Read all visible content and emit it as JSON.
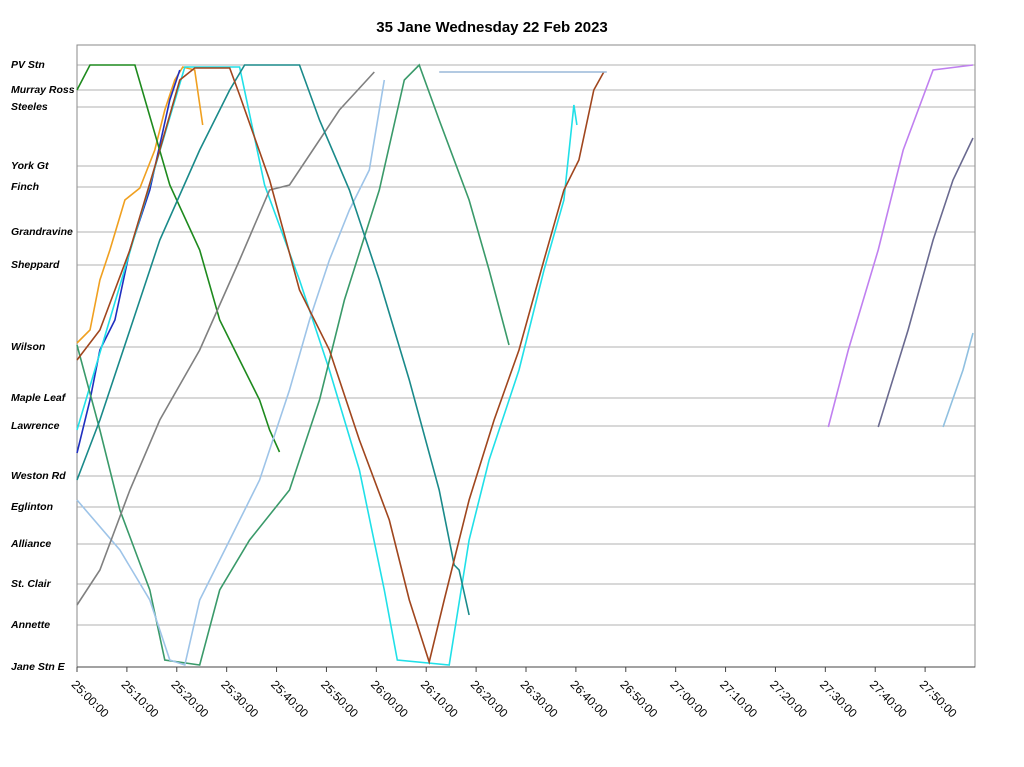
{
  "chart_data": {
    "type": "line",
    "title": "35 Jane Wednesday 22 Feb 2023",
    "grid": true,
    "xlim": [
      1500,
      1680
    ],
    "ylim": [
      0,
      62.2
    ],
    "xticks": [
      {
        "value": 1500,
        "label": "25:00:00"
      },
      {
        "value": 1510,
        "label": "25:10:00"
      },
      {
        "value": 1520,
        "label": "25:20:00"
      },
      {
        "value": 1530,
        "label": "25:30:00"
      },
      {
        "value": 1540,
        "label": "25:40:00"
      },
      {
        "value": 1550,
        "label": "25:50:00"
      },
      {
        "value": 1560,
        "label": "26:00:00"
      },
      {
        "value": 1570,
        "label": "26:10:00"
      },
      {
        "value": 1580,
        "label": "26:20:00"
      },
      {
        "value": 1590,
        "label": "26:30:00"
      },
      {
        "value": 1600,
        "label": "26:40:00"
      },
      {
        "value": 1610,
        "label": "26:50:00"
      },
      {
        "value": 1620,
        "label": "27:00:00"
      },
      {
        "value": 1630,
        "label": "27:10:00"
      },
      {
        "value": 1640,
        "label": "27:20:00"
      },
      {
        "value": 1650,
        "label": "27:30:00"
      },
      {
        "value": 1660,
        "label": "27:40:00"
      },
      {
        "value": 1670,
        "label": "27:50:00"
      }
    ],
    "yticks": [
      {
        "value": 60.2,
        "label": "PV Stn"
      },
      {
        "value": 57.7,
        "label": "Murray Ross"
      },
      {
        "value": 56.0,
        "label": "Steeles"
      },
      {
        "value": 50.1,
        "label": "York Gt"
      },
      {
        "value": 48.0,
        "label": "Finch"
      },
      {
        "value": 43.5,
        "label": "Grandravine"
      },
      {
        "value": 40.2,
        "label": "Sheppard"
      },
      {
        "value": 32.0,
        "label": "Wilson"
      },
      {
        "value": 26.9,
        "label": "Maple Leaf"
      },
      {
        "value": 24.1,
        "label": "Lawrence"
      },
      {
        "value": 19.1,
        "label": "Weston Rd"
      },
      {
        "value": 16.0,
        "label": "Eglinton"
      },
      {
        "value": 12.3,
        "label": "Alliance"
      },
      {
        "value": 8.3,
        "label": "St. Clair"
      },
      {
        "value": 4.2,
        "label": "Annette"
      },
      {
        "value": 0,
        "label": "Jane Stn E"
      }
    ],
    "series": [
      {
        "color": "#f0a020",
        "x": [
          1500,
          1502.6,
          1504.6,
          1506.6,
          1509.6,
          1512.6,
          1515.6,
          1517.6,
          1519.6,
          1521.2,
          1523.6,
          1525.2
        ],
        "values": [
          32.4,
          33.7,
          38.7,
          41.7,
          46.7,
          47.9,
          51.7,
          55.7,
          58.7,
          60.0,
          59.7,
          54.2
        ]
      },
      {
        "color": "#1f2fbf",
        "x": [
          1500,
          1502.6,
          1504.6,
          1507.6,
          1510.6,
          1514.6,
          1518.6,
          1520.6
        ],
        "values": [
          21.4,
          26.7,
          31.7,
          34.7,
          41.7,
          47.7,
          56.7,
          59.7
        ]
      },
      {
        "color": "#20e0e8",
        "x": [
          1500,
          1521.6,
          1532.6,
          1537.6,
          1544.6,
          1550.6,
          1556.6,
          1561.6,
          1564.2,
          1574.6,
          1578.6,
          1582.6,
          1588.6,
          1593.6,
          1597.6,
          1599.6,
          1600.2
        ],
        "values": [
          23.7,
          60.0,
          60.0,
          48.2,
          38.7,
          29.7,
          19.7,
          7.7,
          0.7,
          0.2,
          12.7,
          20.7,
          29.7,
          39.7,
          46.7,
          56.2,
          54.2
        ]
      },
      {
        "color": "#1e8a1e",
        "x": [
          1500,
          1502.6,
          1511.6,
          1518.6,
          1524.6,
          1528.6,
          1532.6,
          1536.6,
          1538.6,
          1540.6
        ],
        "values": [
          57.7,
          60.2,
          60.2,
          48.2,
          41.7,
          34.7,
          30.7,
          26.7,
          23.7,
          21.5
        ]
      },
      {
        "color": "#3a9a6a",
        "x": [
          1500,
          1504.6,
          1508.6,
          1514.6,
          1517.6,
          1524.6,
          1528.6,
          1534.6,
          1542.6,
          1548.6,
          1553.6,
          1560.6,
          1565.6,
          1568.6,
          1572.6,
          1578.6,
          1582.6,
          1586.6
        ],
        "values": [
          32.2,
          23.7,
          15.7,
          7.7,
          0.7,
          0.2,
          7.7,
          12.7,
          17.7,
          26.7,
          36.7,
          47.7,
          58.7,
          60.2,
          54.7,
          46.7,
          39.7,
          32.2
        ]
      },
      {
        "color": "#9ec4e8",
        "x": [
          1500,
          1508.6,
          1514.6,
          1518.6,
          1521.6,
          1524.6,
          1530.6,
          1536.6,
          1542.6,
          1546.6,
          1550.6,
          1554.6,
          1558.6,
          1561.6
        ],
        "values": [
          16.7,
          11.7,
          6.7,
          0.7,
          0.2,
          6.7,
          12.7,
          18.7,
          27.7,
          34.7,
          40.7,
          45.7,
          49.7,
          58.7
        ]
      },
      {
        "color": "#808080",
        "x": [
          1500,
          1504.6,
          1510.6,
          1516.6,
          1524.6,
          1532.6,
          1538.6,
          1542.6,
          1548.6,
          1552.6,
          1559.6
        ],
        "values": [
          6.2,
          9.7,
          17.7,
          24.7,
          31.7,
          40.7,
          47.7,
          48.2,
          52.7,
          55.7,
          59.5
        ]
      },
      {
        "color": "#1a8a8a",
        "x": [
          1500,
          1504.6,
          1510.6,
          1516.6,
          1524.6,
          1530.6,
          1533.6,
          1544.6,
          1548.6,
          1554.6,
          1560.6,
          1566.6,
          1572.6,
          1575.6,
          1576.6,
          1578.6
        ],
        "values": [
          18.7,
          24.7,
          33.7,
          42.7,
          51.7,
          57.7,
          60.2,
          60.2,
          54.7,
          47.7,
          38.7,
          28.7,
          17.7,
          10.2,
          9.7,
          5.2
        ]
      },
      {
        "color": "#a0461e",
        "x": [
          1500,
          1504.6,
          1510.6,
          1516.6,
          1520.6,
          1523.6,
          1530.6,
          1532.6,
          1538.6,
          1544.6,
          1550.6,
          1556.6,
          1562.6,
          1566.6,
          1570.6,
          1573.6,
          1578.6,
          1583.6,
          1588.6,
          1593.6,
          1597.6,
          1600.6,
          1603.6,
          1605.6
        ],
        "values": [
          30.7,
          33.7,
          41.7,
          51.7,
          58.7,
          59.9,
          59.9,
          57.2,
          48.7,
          37.7,
          31.7,
          22.7,
          14.7,
          6.7,
          0.5,
          6.7,
          16.7,
          24.7,
          31.7,
          40.7,
          47.7,
          50.7,
          57.7,
          59.5
        ]
      },
      {
        "color": "#9ab8d8",
        "x": [
          1572.6,
          1606.2
        ],
        "values": [
          59.5,
          59.5
        ]
      },
      {
        "color": "#c080f0",
        "x": [
          1650.6,
          1654.6,
          1660.6,
          1665.6,
          1671.6,
          1679.6
        ],
        "values": [
          24.0,
          31.7,
          41.7,
          51.7,
          59.7,
          60.2
        ]
      },
      {
        "color": "#6a6a90",
        "x": [
          1660.6,
          1666.6,
          1671.6,
          1675.6,
          1679.6
        ],
        "values": [
          24.0,
          33.7,
          42.7,
          48.7,
          52.9
        ]
      },
      {
        "color": "#90c0e0",
        "x": [
          1673.6,
          1677.6,
          1679.6
        ],
        "values": [
          24.0,
          29.7,
          33.4
        ]
      }
    ]
  }
}
